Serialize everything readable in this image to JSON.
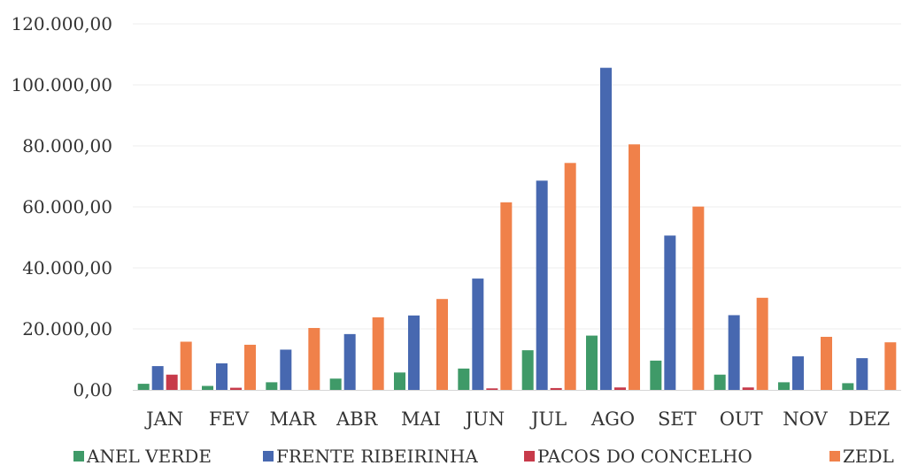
{
  "chart_data": {
    "type": "bar",
    "title": "",
    "xlabel": "",
    "ylabel": "",
    "ylim": [
      0,
      120000
    ],
    "y_ticks": [
      0,
      20000,
      40000,
      60000,
      80000,
      100000,
      120000
    ],
    "y_tick_labels": [
      "0,00",
      "20.000,00",
      "40.000,00",
      "60.000,00",
      "80.000,00",
      "100.000,00",
      "120.000,00"
    ],
    "grid": true,
    "legend_position": "bottom",
    "categories": [
      "JAN",
      "FEV",
      "MAR",
      "ABR",
      "MAI",
      "JUN",
      "JUL",
      "AGO",
      "SET",
      "OUT",
      "NOV",
      "DEZ"
    ],
    "series": [
      {
        "name": "ANEL VERDE",
        "color": "#3f9a68",
        "values": [
          2000,
          1300,
          2500,
          3700,
          5700,
          7000,
          13000,
          17800,
          9600,
          5000,
          2500,
          2200
        ]
      },
      {
        "name": "FRENTE RIBEIRINHA",
        "color": "#4768b0",
        "values": [
          7800,
          8700,
          13200,
          18300,
          24400,
          36500,
          68600,
          105600,
          50600,
          24500,
          11000,
          10400
        ]
      },
      {
        "name": "PACOS DO CONCELHO",
        "color": "#c73a4a",
        "values": [
          5000,
          700,
          0,
          0,
          0,
          500,
          600,
          800,
          0,
          800,
          0,
          0
        ]
      },
      {
        "name": "ZEDL",
        "color": "#f0814a",
        "values": [
          15800,
          14800,
          20300,
          23800,
          29800,
          61500,
          74400,
          80500,
          60100,
          30200,
          17400,
          15600
        ]
      }
    ]
  }
}
